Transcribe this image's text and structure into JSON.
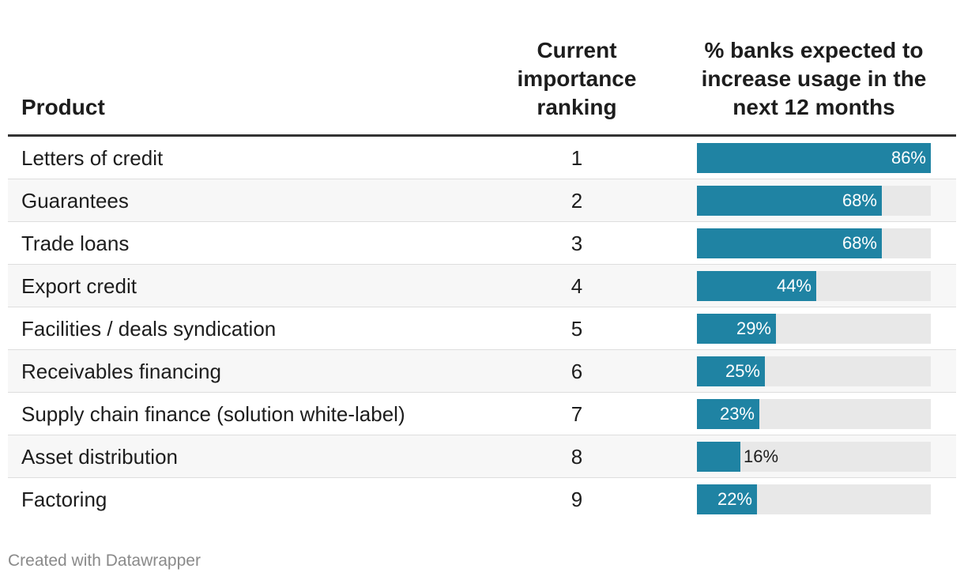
{
  "headers": {
    "product": "Product",
    "rank": [
      "Current",
      "importance",
      "ranking"
    ],
    "pct": [
      "% banks expected to",
      "increase usage in the",
      "next 12 months"
    ]
  },
  "colors": {
    "bar": "#1f83a3",
    "track": "#e8e8e8",
    "label_inside": "#ffffff",
    "label_outside": "#1d1d1d"
  },
  "chart_data": {
    "type": "table",
    "title": "",
    "columns": [
      "Product",
      "Current importance ranking",
      "% banks expected to increase usage in the next 12 months"
    ],
    "value_max": 86,
    "rows": [
      {
        "product": "Letters of credit",
        "rank": "1",
        "value": 86,
        "label": "86%"
      },
      {
        "product": "Guarantees",
        "rank": "2",
        "value": 68,
        "label": "68%"
      },
      {
        "product": "Trade loans",
        "rank": "3",
        "value": 68,
        "label": "68%"
      },
      {
        "product": "Export credit",
        "rank": "4",
        "value": 44,
        "label": "44%"
      },
      {
        "product": "Facilities / deals syndication",
        "rank": "5",
        "value": 29,
        "label": "29%"
      },
      {
        "product": "Receivables financing",
        "rank": "6",
        "value": 25,
        "label": "25%"
      },
      {
        "product": "Supply chain finance (solution white-label)",
        "rank": "7",
        "value": 23,
        "label": "23%"
      },
      {
        "product": "Asset distribution",
        "rank": "8",
        "value": 16,
        "label": "16%"
      },
      {
        "product": "Factoring",
        "rank": "9",
        "value": 22,
        "label": "22%"
      }
    ]
  },
  "footer": "Created with Datawrapper"
}
